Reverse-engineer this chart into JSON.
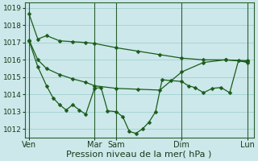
{
  "bg_color": "#cce8ea",
  "grid_color": "#99cccc",
  "line_color": "#1a5c1a",
  "xlabel": "Pression niveau de la mer( hPa )",
  "ylim": [
    1011.5,
    1019.3
  ],
  "yticks": [
    1012,
    1013,
    1014,
    1015,
    1016,
    1017,
    1018,
    1019
  ],
  "xtick_labels": [
    "Ven",
    "Mar",
    "Sam",
    "Dim",
    "Lun"
  ],
  "xtick_positions": [
    0,
    30,
    40,
    70,
    100
  ],
  "vline_positions": [
    0,
    30,
    40,
    70,
    100
  ],
  "series1_x": [
    0,
    4,
    8,
    14,
    20,
    26,
    30,
    40,
    50,
    60,
    70,
    80,
    90,
    100
  ],
  "series1_y": [
    1018.65,
    1017.2,
    1017.4,
    1017.1,
    1017.05,
    1017.0,
    1016.95,
    1016.7,
    1016.5,
    1016.3,
    1016.1,
    1016.0,
    1016.0,
    1015.95
  ],
  "series2_x": [
    0,
    4,
    8,
    14,
    20,
    26,
    30,
    40,
    50,
    60,
    70,
    80,
    90,
    100
  ],
  "series2_y": [
    1017.15,
    1016.0,
    1015.5,
    1015.15,
    1014.9,
    1014.7,
    1014.5,
    1014.35,
    1014.3,
    1014.25,
    1015.3,
    1015.85,
    1016.0,
    1015.9
  ],
  "series3_x": [
    0,
    4,
    8,
    11,
    14,
    17,
    20,
    23,
    26,
    30,
    33,
    36,
    40,
    43,
    46,
    49,
    52,
    55,
    58,
    61,
    65,
    70,
    73,
    76,
    80,
    84,
    88,
    92,
    96,
    100
  ],
  "series3_y": [
    1017.1,
    1015.6,
    1014.5,
    1013.8,
    1013.4,
    1013.1,
    1013.4,
    1013.1,
    1012.85,
    1014.35,
    1014.4,
    1013.05,
    1013.0,
    1012.7,
    1011.85,
    1011.75,
    1012.0,
    1012.4,
    1013.0,
    1014.85,
    1014.8,
    1014.75,
    1014.5,
    1014.4,
    1014.1,
    1014.35,
    1014.4,
    1014.1,
    1015.95,
    1015.85
  ],
  "xlabel_fontsize": 8,
  "ytick_fontsize": 6.5,
  "xtick_fontsize": 7,
  "marker_size": 2.5,
  "line_width": 0.9
}
